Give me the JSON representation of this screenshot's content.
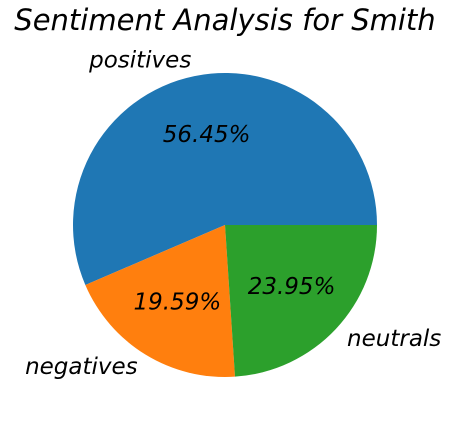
{
  "chart_data": {
    "type": "pie",
    "title": "Sentiment Analysis for Smith",
    "categories": [
      "positives",
      "negatives",
      "neutrals"
    ],
    "values": [
      56.45,
      19.59,
      23.95
    ],
    "value_labels": [
      "56.45%",
      "19.59%",
      "23.95%"
    ],
    "colors": [
      "#1f77b4",
      "#ff7f0e",
      "#2ca02c"
    ],
    "start_angle_deg": 0,
    "direction": "counterclockwise",
    "legend": "none"
  }
}
